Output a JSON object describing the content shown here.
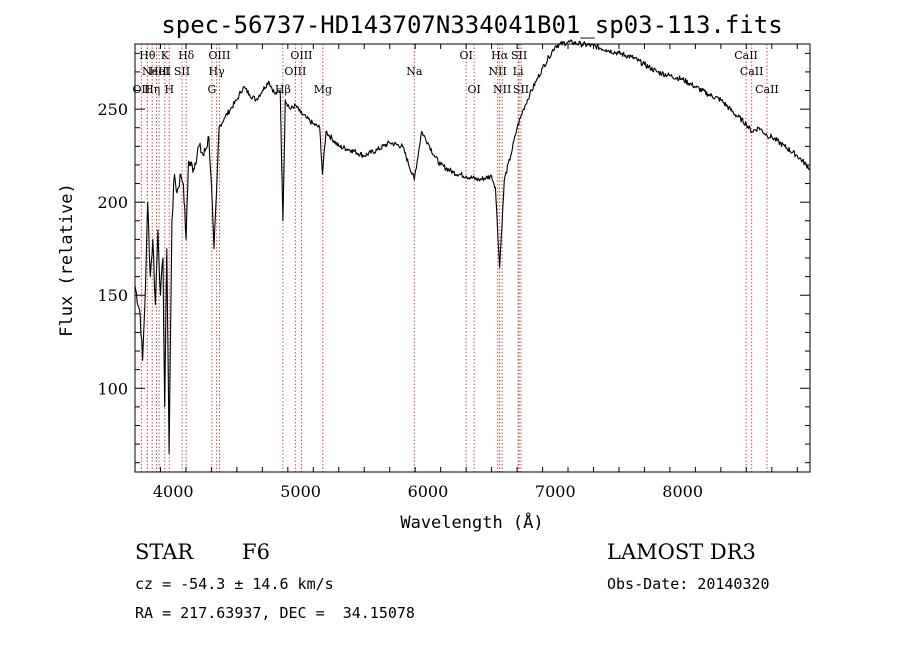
{
  "chart_data": {
    "type": "line",
    "title": "spec-56737-HD143707N334041B01_sp03-113.fits",
    "xlabel": "Wavelength (Å)",
    "ylabel": "Flux (relative)",
    "xlim": [
      3700,
      9000
    ],
    "ylim": [
      55,
      285
    ],
    "xticks": [
      4000,
      5000,
      6000,
      7000,
      8000
    ],
    "yticks": [
      100,
      150,
      200,
      250
    ],
    "grid": false,
    "series": [
      {
        "name": "flux",
        "color": "#000000",
        "x": [
          3700,
          3740,
          3760,
          3780,
          3800,
          3820,
          3840,
          3860,
          3880,
          3900,
          3920,
          3933,
          3950,
          3968,
          3990,
          4010,
          4030,
          4060,
          4080,
          4101,
          4120,
          4160,
          4200,
          4240,
          4280,
          4300,
          4320,
          4340,
          4360,
          4400,
          4450,
          4500,
          4550,
          4600,
          4650,
          4700,
          4750,
          4800,
          4840,
          4861,
          4880,
          4920,
          4960,
          5000,
          5050,
          5100,
          5150,
          5172,
          5200,
          5300,
          5400,
          5500,
          5600,
          5700,
          5800,
          5893,
          5950,
          6000,
          6050,
          6100,
          6200,
          6300,
          6400,
          6500,
          6530,
          6563,
          6600,
          6650,
          6700,
          6750,
          6800,
          6850,
          6900,
          6950,
          7000,
          7100,
          7200,
          7300,
          7400,
          7500,
          7600,
          7700,
          7800,
          7900,
          8000,
          8100,
          8200,
          8300,
          8400,
          8500,
          8542,
          8600,
          8662,
          8700,
          8800,
          8900,
          9000
        ],
        "y": [
          155,
          140,
          115,
          150,
          200,
          160,
          180,
          145,
          185,
          150,
          170,
          90,
          175,
          65,
          190,
          215,
          205,
          215,
          210,
          180,
          222,
          218,
          230,
          225,
          235,
          210,
          175,
          205,
          240,
          245,
          250,
          255,
          262,
          258,
          255,
          260,
          265,
          258,
          260,
          190,
          255,
          250,
          252,
          248,
          245,
          242,
          240,
          215,
          238,
          230,
          228,
          225,
          228,
          232,
          230,
          212,
          238,
          232,
          225,
          220,
          216,
          214,
          212,
          214,
          208,
          165,
          212,
          225,
          240,
          250,
          258,
          265,
          272,
          278,
          284,
          286,
          285,
          284,
          282,
          280,
          278,
          274,
          270,
          268,
          266,
          262,
          258,
          255,
          248,
          242,
          238,
          240,
          236,
          235,
          230,
          225,
          218
        ]
      }
    ],
    "lines": [
      {
        "wavelength": 3750,
        "label": "OII",
        "row": 3
      },
      {
        "wavelength": 3797,
        "label": "Hθ",
        "row": 1
      },
      {
        "wavelength": 3835,
        "label": "Hη",
        "row": 3
      },
      {
        "wavelength": 3869,
        "label": "NeIII",
        "row": 2
      },
      {
        "wavelength": 3889,
        "label": "HeI",
        "row": 2
      },
      {
        "wavelength": 3934,
        "label": "K",
        "row": 1
      },
      {
        "wavelength": 3969,
        "label": "H",
        "row": 3
      },
      {
        "wavelength": 4069,
        "label": "SII",
        "row": 2
      },
      {
        "wavelength": 4102,
        "label": "Hδ",
        "row": 1
      },
      {
        "wavelength": 4304,
        "label": "G",
        "row": 3
      },
      {
        "wavelength": 4341,
        "label": "Hγ",
        "row": 2
      },
      {
        "wavelength": 4363,
        "label": "OIII",
        "row": 1
      },
      {
        "wavelength": 4861,
        "label": "Hβ",
        "row": 3
      },
      {
        "wavelength": 4959,
        "label": "OIII",
        "row": 2
      },
      {
        "wavelength": 5007,
        "label": "OIII",
        "row": 1
      },
      {
        "wavelength": 5175,
        "label": "Mg",
        "row": 3
      },
      {
        "wavelength": 5893,
        "label": "Na",
        "row": 2
      },
      {
        "wavelength": 6300,
        "label": "OI",
        "row": 1
      },
      {
        "wavelength": 6363,
        "label": "OI",
        "row": 3
      },
      {
        "wavelength": 6548,
        "label": "NII",
        "row": 2
      },
      {
        "wavelength": 6563,
        "label": "Hα",
        "row": 1
      },
      {
        "wavelength": 6583,
        "label": "NII",
        "row": 3
      },
      {
        "wavelength": 6708,
        "label": "Li",
        "row": 2
      },
      {
        "wavelength": 6716,
        "label": "SII",
        "row": 1
      },
      {
        "wavelength": 6731,
        "label": "SII",
        "row": 3
      },
      {
        "wavelength": 8498,
        "label": "CaII",
        "row": 1
      },
      {
        "wavelength": 8542,
        "label": "CaII",
        "row": 2
      },
      {
        "wavelength": 8662,
        "label": "CaII",
        "row": 3
      }
    ]
  },
  "info": {
    "class": "STAR",
    "subclass": "F6",
    "survey": "LAMOST DR3",
    "cz": "cz = -54.3 ± 14.6 km/s",
    "obs_date": "Obs-Date: 20140320",
    "coords": "RA = 217.63937, DEC =  34.15078"
  }
}
